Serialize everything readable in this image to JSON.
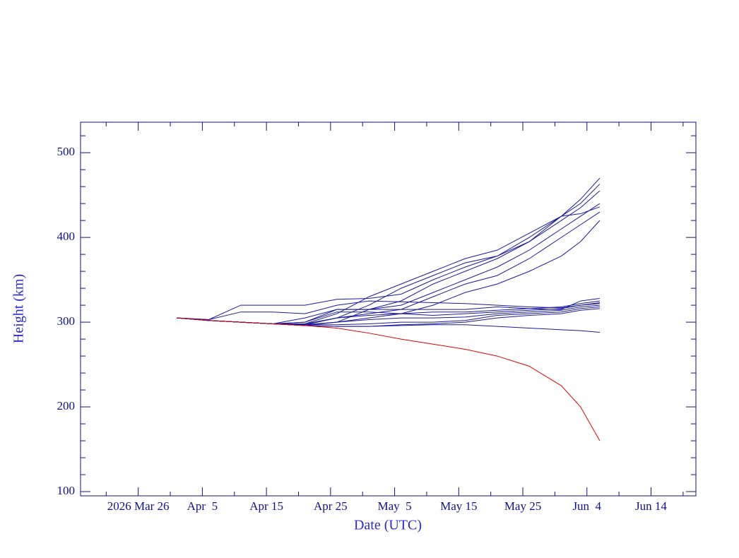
{
  "chart_data": {
    "type": "line",
    "xlabel": "Date (UTC)",
    "ylabel": "Height (km)",
    "x": [
      "2026-04-01",
      "2026-04-06",
      "2026-04-11",
      "2026-04-16",
      "2026-04-21",
      "2026-04-26",
      "2026-05-01",
      "2026-05-06",
      "2026-05-11",
      "2026-05-16",
      "2026-05-21",
      "2026-05-26",
      "2026-05-31",
      "2026-06-03",
      "2026-06-06"
    ],
    "xlim": [
      "2026-03-17",
      "2026-06-21"
    ],
    "xticks": [
      {
        "value": "2026-03-26",
        "label": "2026 Mar 26"
      },
      {
        "value": "2026-04-05",
        "label": "Apr  5"
      },
      {
        "value": "2026-04-15",
        "label": "Apr 15"
      },
      {
        "value": "2026-04-25",
        "label": "Apr 25"
      },
      {
        "value": "2026-05-05",
        "label": "May  5"
      },
      {
        "value": "2026-05-15",
        "label": "May 15"
      },
      {
        "value": "2026-05-25",
        "label": "May 25"
      },
      {
        "value": "2026-06-04",
        "label": "Jun  4"
      },
      {
        "value": "2026-06-14",
        "label": "Jun 14"
      }
    ],
    "xminorticks": [
      "2026-03-21",
      "2026-03-31",
      "2026-04-10",
      "2026-04-20",
      "2026-04-30",
      "2026-05-10",
      "2026-05-20",
      "2026-05-30",
      "2026-06-09",
      "2026-06-19"
    ],
    "ylim": [
      95,
      536
    ],
    "yticks": [
      100,
      200,
      300,
      400,
      500
    ],
    "yminorticks": [
      120,
      140,
      160,
      180,
      220,
      240,
      260,
      280,
      320,
      340,
      360,
      380,
      420,
      440,
      460,
      480,
      520
    ],
    "series": [
      {
        "color": "#1a1aa0",
        "values": [
          305,
          302,
          300,
          298,
          298,
          310,
          330,
          345,
          360,
          375,
          385,
          405,
          425,
          445,
          470
        ]
      },
      {
        "color": "#1a1aa0",
        "values": [
          305,
          302,
          300,
          298,
          297,
          305,
          320,
          340,
          355,
          370,
          378,
          400,
          425,
          440,
          463
        ]
      },
      {
        "color": "#1a1aa0",
        "values": [
          305,
          302,
          300,
          298,
          297,
          300,
          315,
          325,
          345,
          360,
          375,
          395,
          420,
          435,
          455
        ]
      },
      {
        "color": "#1a1aa0",
        "values": [
          305,
          302,
          300,
          298,
          300,
          315,
          315,
          320,
          335,
          350,
          365,
          385,
          410,
          425,
          440
        ]
      },
      {
        "color": "#1a1aa0",
        "values": [
          305,
          302,
          300,
          298,
          298,
          305,
          310,
          315,
          330,
          345,
          355,
          375,
          400,
          415,
          430
        ]
      },
      {
        "color": "#1a1aa0",
        "values": [
          305,
          302,
          300,
          298,
          296,
          300,
          305,
          310,
          320,
          335,
          345,
          360,
          378,
          395,
          420
        ]
      },
      {
        "color": "#1a1aa0",
        "values": [
          305,
          303,
          320,
          320,
          320,
          327,
          328,
          333,
          350,
          365,
          378,
          395,
          425,
          428,
          436
        ]
      },
      {
        "color": "#1a1aa0",
        "values": [
          305,
          303,
          312,
          312,
          310,
          320,
          325,
          324,
          323,
          322,
          320,
          318,
          317,
          320,
          323
        ]
      },
      {
        "color": "#1a1aa0",
        "values": [
          305,
          302,
          300,
          298,
          305,
          315,
          315,
          315,
          315,
          315,
          318,
          316,
          315,
          325,
          328
        ]
      },
      {
        "color": "#1a1aa0",
        "values": [
          305,
          302,
          300,
          298,
          300,
          312,
          312,
          310,
          312,
          312,
          314,
          316,
          318,
          322,
          325
        ]
      },
      {
        "color": "#1a1aa0",
        "values": [
          305,
          302,
          300,
          298,
          297,
          305,
          308,
          310,
          308,
          310,
          312,
          314,
          316,
          320,
          322
        ]
      },
      {
        "color": "#1a1aa0",
        "values": [
          305,
          302,
          300,
          298,
          297,
          300,
          303,
          305,
          305,
          306,
          310,
          312,
          314,
          318,
          320
        ]
      },
      {
        "color": "#1a1aa0",
        "values": [
          305,
          302,
          300,
          298,
          297,
          297,
          298,
          300,
          300,
          302,
          308,
          310,
          312,
          316,
          318
        ]
      },
      {
        "color": "#1a1aa0",
        "values": [
          305,
          302,
          300,
          298,
          296,
          295,
          295,
          297,
          298,
          300,
          305,
          308,
          310,
          314,
          316
        ]
      },
      {
        "color": "#1a1aa0",
        "values": [
          305,
          302,
          300,
          298,
          296,
          295,
          295,
          296,
          297,
          297,
          295,
          293,
          291,
          290,
          288
        ]
      },
      {
        "color": "#e00000",
        "values": [
          305,
          302,
          300,
          298,
          296,
          293,
          287,
          280,
          274,
          268,
          260,
          248,
          225,
          200,
          160
        ]
      }
    ]
  }
}
